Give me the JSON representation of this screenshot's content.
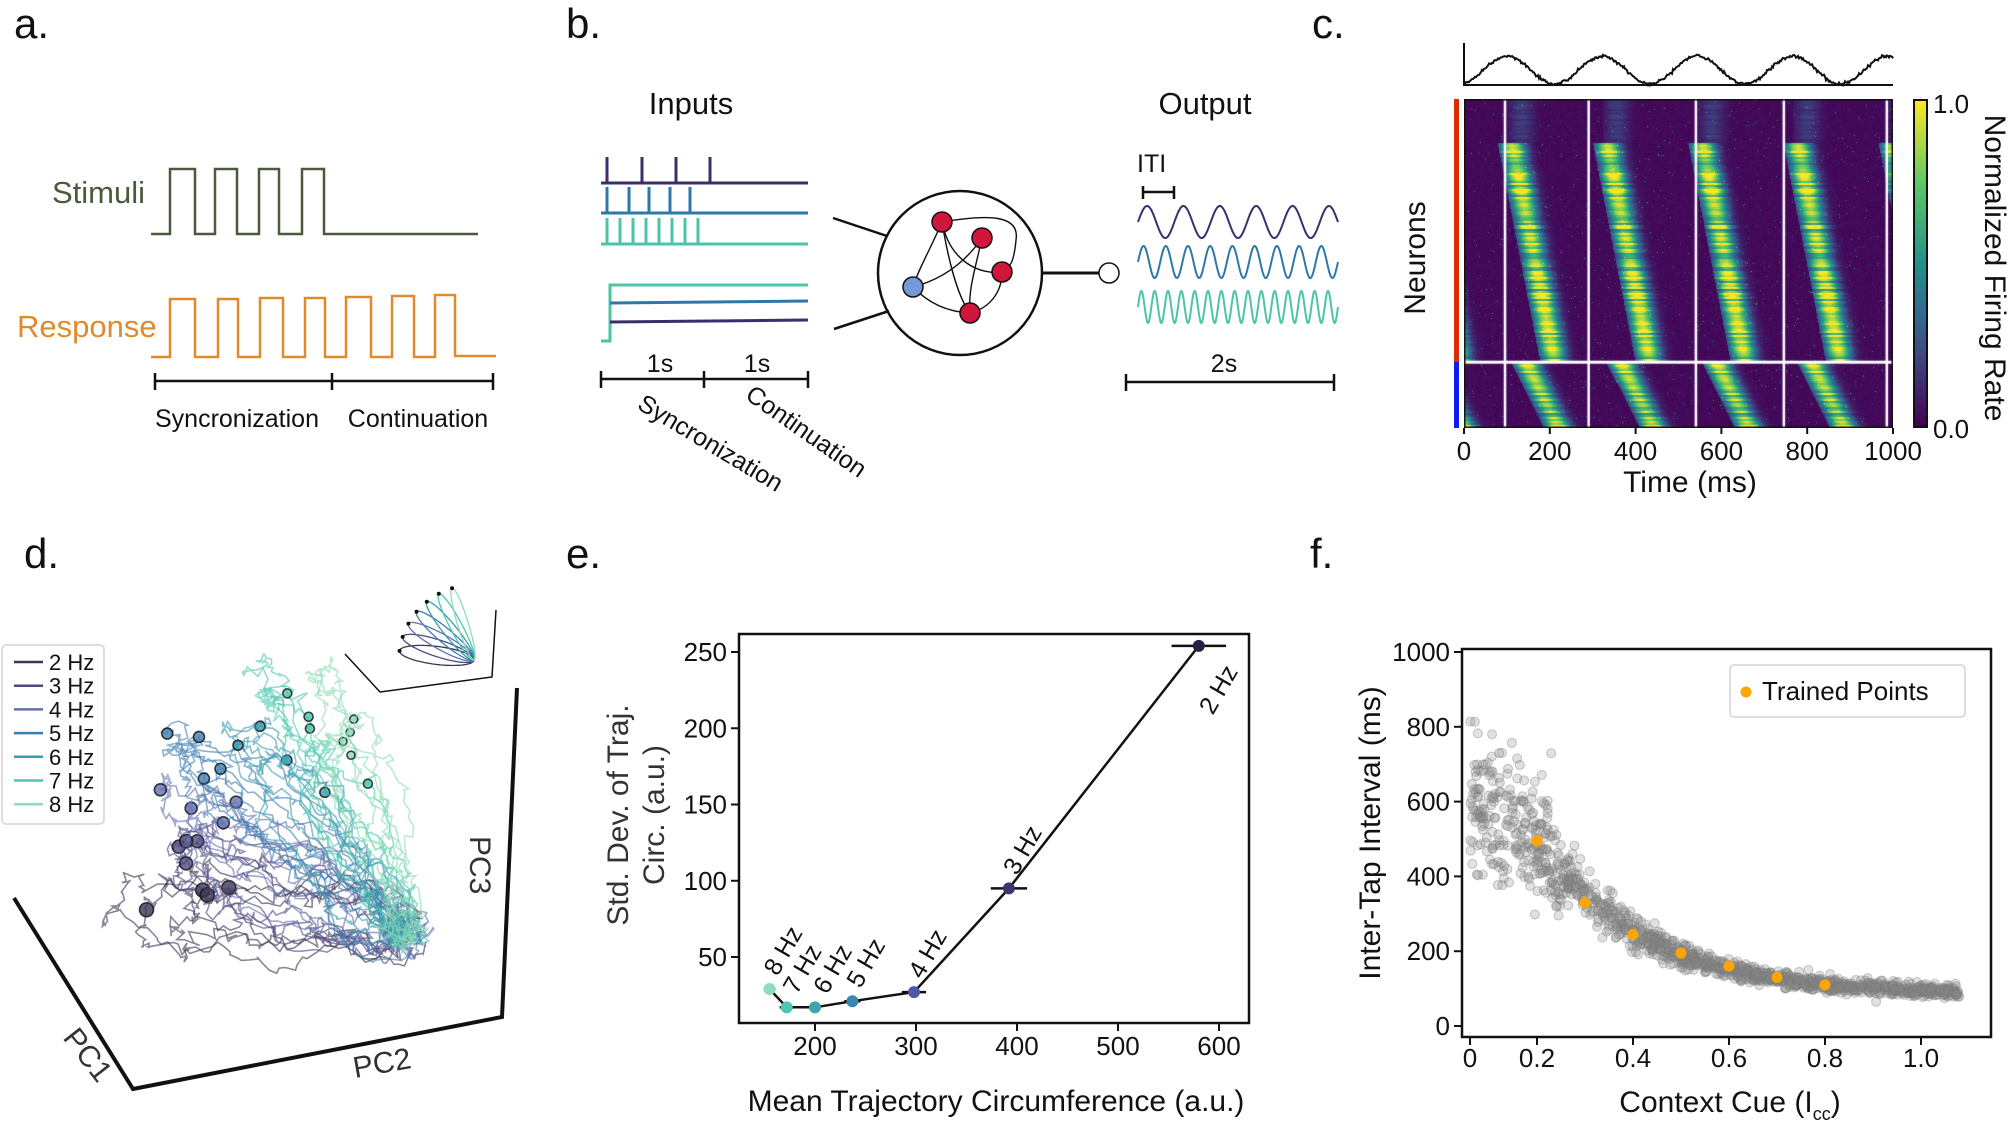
{
  "panels": {
    "a": "a.",
    "b": "b.",
    "c": "c.",
    "d": "d.",
    "e": "e.",
    "f": "f."
  },
  "panel_a": {
    "stimuli_label": "Stimuli",
    "response_label": "Response",
    "sync_label": "Syncronization",
    "cont_label": "Continuation",
    "colors": {
      "stimuli": "#4b5a3c",
      "response": "#e08a2c"
    }
  },
  "panel_b": {
    "inputs_title": "Inputs",
    "output_title": "Output",
    "iti_label": "ITI",
    "sync_duration": "1s",
    "cont_duration": "1s",
    "output_duration": "2s",
    "sync_label": "Syncronization",
    "cont_label": "Continuation",
    "colors": {
      "purple": "#3b2e6e",
      "blue": "#2e78a8",
      "teal": "#4cc4a8",
      "excitatory": "#d0163a",
      "inhibitory": "#7499d8"
    }
  },
  "panel_c": {
    "ylabel": "Neurons",
    "xlabel": "Time (ms)",
    "xticks": [
      "0",
      "200",
      "400",
      "600",
      "800",
      "1000"
    ],
    "colorbar_label": "Normalized Firing Rate",
    "colorbar_max": "1.0",
    "colorbar_min": "0.0",
    "event_lines_ms": [
      95,
      290,
      540,
      745,
      985
    ],
    "excitatory_fraction": 0.8,
    "colors": {
      "excitatory_bar": "#e02a00",
      "inhibitory_bar": "#0b1ef0"
    }
  },
  "chart_data": [
    {
      "panel": "d",
      "type": "line",
      "axis_labels": {
        "pc1": "PC1",
        "pc2": "PC2",
        "pc3": "PC3"
      },
      "legend_placement": "left",
      "series": [
        {
          "name": "2 Hz",
          "color": "#3d3354"
        },
        {
          "name": "3 Hz",
          "color": "#4e4a80"
        },
        {
          "name": "4 Hz",
          "color": "#6470b0"
        },
        {
          "name": "5 Hz",
          "color": "#3f7fb0"
        },
        {
          "name": "6 Hz",
          "color": "#3a9ab0"
        },
        {
          "name": "7 Hz",
          "color": "#4cc8b0"
        },
        {
          "name": "8 Hz",
          "color": "#8edcb8"
        }
      ]
    },
    {
      "panel": "e",
      "type": "line",
      "xlabel": "Mean Trajectory Circumference (a.u.)",
      "ylabel_line1": "Std. Dev. of Traj.",
      "ylabel_line2": "Circ. (a.u.)",
      "xlim": [
        125,
        630
      ],
      "ylim": [
        14,
        262
      ],
      "xticks": [
        200,
        300,
        400,
        500,
        600
      ],
      "yticks": [
        50,
        100,
        150,
        200,
        250
      ],
      "points": [
        {
          "label": "8 Hz",
          "x": 155,
          "y": 29,
          "xerr": 6,
          "color": "#8edcb8"
        },
        {
          "label": "7 Hz",
          "x": 172,
          "y": 17,
          "xerr": 7,
          "color": "#4cc8b0"
        },
        {
          "label": "6 Hz",
          "x": 200,
          "y": 17,
          "xerr": 5,
          "color": "#3aa6b0"
        },
        {
          "label": "5 Hz",
          "x": 237,
          "y": 21,
          "xerr": 8,
          "color": "#3a86ae"
        },
        {
          "label": "4 Hz",
          "x": 298,
          "y": 27,
          "xerr": 12,
          "color": "#4a5aa8"
        },
        {
          "label": "3 Hz",
          "x": 392,
          "y": 95,
          "xerr": 18,
          "color": "#3b3470"
        },
        {
          "label": "2 Hz",
          "x": 580,
          "y": 254,
          "xerr": 27,
          "color": "#2a1f3e"
        }
      ]
    },
    {
      "panel": "f",
      "type": "scatter",
      "xlabel": "Context Cue (I",
      "xlabel_sub": "cc",
      "xlabel_close": ")",
      "ylabel": "Inter-Tap Interval (ms)",
      "xlim": [
        0.04,
        1.15
      ],
      "ylim": [
        -30,
        1010
      ],
      "xticks": [
        0,
        0.2,
        0.4,
        0.6,
        0.8,
        1.0
      ],
      "xtick_labels": [
        "0",
        "0.2",
        "0.4",
        "0.6",
        "0.8",
        "1.0"
      ],
      "yticks": [
        0,
        200,
        400,
        600,
        800,
        1000
      ],
      "legend": {
        "label": "Trained Points",
        "placement": "top-right"
      },
      "trained_points": {
        "x": [
          0.2,
          0.3,
          0.4,
          0.5,
          0.6,
          0.7,
          0.8
        ],
        "y": [
          495,
          330,
          245,
          195,
          160,
          130,
          110
        ],
        "color": "#ffa500"
      },
      "tested_points_trend": {
        "x": [
          0.06,
          0.1,
          0.2,
          0.3,
          0.4,
          0.5,
          0.6,
          0.7,
          0.8,
          0.9,
          1.0,
          1.08
        ],
        "y": [
          620,
          580,
          500,
          350,
          250,
          190,
          150,
          125,
          110,
          100,
          95,
          92
        ],
        "color": "#888888"
      }
    }
  ]
}
